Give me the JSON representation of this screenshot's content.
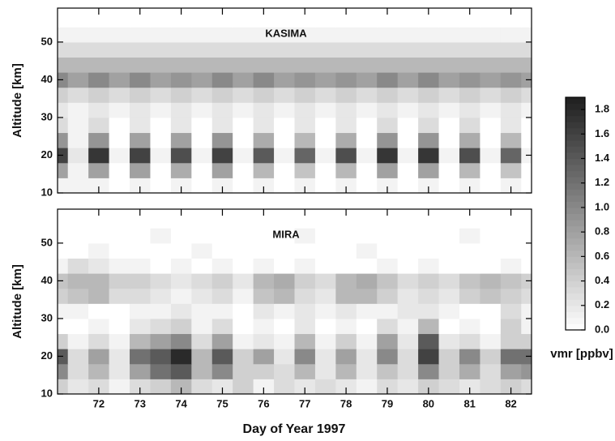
{
  "chart_data": [
    {
      "type": "contour",
      "title": "KASIMA",
      "y_label": "Altitude [km]",
      "xlim": [
        71,
        82.5
      ],
      "xticks": [
        72,
        73,
        74,
        75,
        76,
        77,
        78,
        79,
        80,
        81,
        82
      ],
      "ylim": [
        10,
        59
      ],
      "yticks": [
        10,
        20,
        30,
        40,
        50
      ],
      "x": [
        71.0,
        71.5,
        72.0,
        72.5,
        73.0,
        73.5,
        74.0,
        74.5,
        75.0,
        75.5,
        76.0,
        76.5,
        77.0,
        77.5,
        78.0,
        78.5,
        79.0,
        79.5,
        80.0,
        80.5,
        81.0,
        81.5,
        82.0,
        82.5
      ],
      "y": [
        12,
        16,
        20,
        24,
        28,
        32,
        36,
        40,
        44,
        48,
        52,
        56
      ],
      "z": [
        [
          0.1,
          0.1,
          0.1,
          0.0,
          0.1,
          0.0,
          0.1,
          0.0,
          0.1,
          0.0,
          0.1,
          0.0,
          0.1,
          0.0,
          0.1,
          0.0,
          0.1,
          0.0,
          0.1,
          0.0,
          0.1,
          0.0,
          0.1,
          0.0
        ],
        [
          0.8,
          0.1,
          0.8,
          0.0,
          0.8,
          0.0,
          0.7,
          0.0,
          0.8,
          0.0,
          0.6,
          0.0,
          0.5,
          0.0,
          0.6,
          0.0,
          0.8,
          0.0,
          0.8,
          0.0,
          0.6,
          0.0,
          0.5,
          0.0
        ],
        [
          1.6,
          0.2,
          1.7,
          0.1,
          1.6,
          0.1,
          1.5,
          0.1,
          1.6,
          0.1,
          1.4,
          0.1,
          1.3,
          0.1,
          1.5,
          0.1,
          1.7,
          0.1,
          1.7,
          0.1,
          1.5,
          0.1,
          1.3,
          0.1
        ],
        [
          0.9,
          0.1,
          0.9,
          0.0,
          0.8,
          0.0,
          0.8,
          0.0,
          0.9,
          0.0,
          0.7,
          0.0,
          0.6,
          0.0,
          0.7,
          0.0,
          0.9,
          0.0,
          0.9,
          0.0,
          0.7,
          0.0,
          0.6,
          0.0
        ],
        [
          0.3,
          0.1,
          0.3,
          0.0,
          0.2,
          0.0,
          0.2,
          0.0,
          0.2,
          0.0,
          0.2,
          0.0,
          0.2,
          0.0,
          0.2,
          0.0,
          0.3,
          0.0,
          0.3,
          0.0,
          0.3,
          0.0,
          0.2,
          0.0
        ],
        [
          0.2,
          0.1,
          0.2,
          0.1,
          0.2,
          0.1,
          0.2,
          0.1,
          0.2,
          0.1,
          0.2,
          0.1,
          0.2,
          0.1,
          0.2,
          0.1,
          0.2,
          0.1,
          0.2,
          0.1,
          0.2,
          0.1,
          0.2,
          0.1
        ],
        [
          0.4,
          0.3,
          0.4,
          0.3,
          0.4,
          0.3,
          0.4,
          0.3,
          0.4,
          0.3,
          0.4,
          0.3,
          0.4,
          0.3,
          0.4,
          0.3,
          0.4,
          0.3,
          0.4,
          0.3,
          0.4,
          0.3,
          0.4,
          0.3
        ],
        [
          1.0,
          0.8,
          1.0,
          0.8,
          1.0,
          0.8,
          0.9,
          0.8,
          1.0,
          0.8,
          1.0,
          0.8,
          0.9,
          0.8,
          0.9,
          0.8,
          1.0,
          0.8,
          1.0,
          0.8,
          0.9,
          0.8,
          0.9,
          0.8
        ],
        [
          0.6,
          0.6,
          0.6,
          0.6,
          0.6,
          0.6,
          0.6,
          0.6,
          0.6,
          0.6,
          0.6,
          0.6,
          0.6,
          0.6,
          0.6,
          0.6,
          0.6,
          0.6,
          0.6,
          0.6,
          0.6,
          0.6,
          0.6,
          0.6
        ],
        [
          0.3,
          0.3,
          0.3,
          0.3,
          0.3,
          0.3,
          0.3,
          0.3,
          0.3,
          0.3,
          0.3,
          0.3,
          0.3,
          0.3,
          0.3,
          0.3,
          0.3,
          0.3,
          0.3,
          0.3,
          0.3,
          0.3,
          0.3,
          0.3
        ],
        [
          0.1,
          0.1,
          0.1,
          0.1,
          0.1,
          0.1,
          0.1,
          0.1,
          0.1,
          0.1,
          0.1,
          0.1,
          0.1,
          0.1,
          0.1,
          0.1,
          0.1,
          0.1,
          0.1,
          0.1,
          0.1,
          0.1,
          0.1,
          0.1
        ],
        [
          0.0,
          0.0,
          0.0,
          0.0,
          0.0,
          0.0,
          0.0,
          0.0,
          0.0,
          0.0,
          0.0,
          0.0,
          0.0,
          0.0,
          0.0,
          0.0,
          0.0,
          0.0,
          0.0,
          0.0,
          0.0,
          0.0,
          0.0,
          0.0
        ]
      ]
    },
    {
      "type": "contour",
      "title": "MIRA",
      "y_label": "Altitude [km]",
      "x_label": "Day of Year 1997",
      "xlim": [
        71,
        82.5
      ],
      "xticks": [
        72,
        73,
        74,
        75,
        76,
        77,
        78,
        79,
        80,
        81,
        82
      ],
      "ylim": [
        10,
        59
      ],
      "yticks": [
        10,
        20,
        30,
        40,
        50
      ],
      "x": [
        71.0,
        71.5,
        72.0,
        72.5,
        73.0,
        73.5,
        74.0,
        74.5,
        75.0,
        75.5,
        76.0,
        76.5,
        77.0,
        77.5,
        78.0,
        78.5,
        79.0,
        79.5,
        80.0,
        80.5,
        81.0,
        81.5,
        82.0,
        82.5
      ],
      "y": [
        12,
        16,
        20,
        24,
        28,
        32,
        36,
        40,
        44,
        48,
        52,
        56
      ],
      "z": [
        [
          0.4,
          0.2,
          0.3,
          0.1,
          0.3,
          0.4,
          0.6,
          0.3,
          0.2,
          0.4,
          0.1,
          0.3,
          0.2,
          0.3,
          0.2,
          0.1,
          0.3,
          0.2,
          0.4,
          0.3,
          0.2,
          0.3,
          0.4,
          0.3
        ],
        [
          1.0,
          0.3,
          0.6,
          0.2,
          0.8,
          1.2,
          1.4,
          0.6,
          1.0,
          0.4,
          0.4,
          0.3,
          0.6,
          0.2,
          0.6,
          0.2,
          0.5,
          0.3,
          1.0,
          0.4,
          0.7,
          0.3,
          0.8,
          0.9
        ],
        [
          1.4,
          0.3,
          0.8,
          0.2,
          1.2,
          1.4,
          1.8,
          0.6,
          1.4,
          0.4,
          0.8,
          0.2,
          1.0,
          0.2,
          0.8,
          0.2,
          1.0,
          0.3,
          1.6,
          0.4,
          1.0,
          0.4,
          1.2,
          1.2
        ],
        [
          0.4,
          0.1,
          0.3,
          0.1,
          0.6,
          0.8,
          1.0,
          0.3,
          0.8,
          0.1,
          0.2,
          0.1,
          0.6,
          0.1,
          0.4,
          0.1,
          0.8,
          0.2,
          1.4,
          0.2,
          0.3,
          0.1,
          0.4,
          0.4
        ],
        [
          0.0,
          0.0,
          0.1,
          0.0,
          0.2,
          0.3,
          0.4,
          0.1,
          0.3,
          0.0,
          0.1,
          0.0,
          0.2,
          0.0,
          0.1,
          0.0,
          0.3,
          0.1,
          0.6,
          0.0,
          0.1,
          0.0,
          0.4,
          0.1
        ],
        [
          0.1,
          0.1,
          0.0,
          0.0,
          0.1,
          0.1,
          0.2,
          0.1,
          0.1,
          0.0,
          0.2,
          0.1,
          0.2,
          0.1,
          0.2,
          0.1,
          0.1,
          0.2,
          0.2,
          0.1,
          0.0,
          0.0,
          0.3,
          0.1
        ],
        [
          0.4,
          0.5,
          0.6,
          0.3,
          0.3,
          0.2,
          0.1,
          0.2,
          0.3,
          0.1,
          0.5,
          0.6,
          0.3,
          0.2,
          0.6,
          0.6,
          0.4,
          0.2,
          0.3,
          0.2,
          0.4,
          0.5,
          0.4,
          0.3
        ],
        [
          0.5,
          0.6,
          0.6,
          0.4,
          0.4,
          0.3,
          0.2,
          0.3,
          0.4,
          0.2,
          0.6,
          0.7,
          0.4,
          0.3,
          0.6,
          0.7,
          0.5,
          0.3,
          0.4,
          0.3,
          0.5,
          0.6,
          0.5,
          0.4
        ],
        [
          0.1,
          0.3,
          0.2,
          0.1,
          0.1,
          0.0,
          0.1,
          0.0,
          0.1,
          0.0,
          0.1,
          0.0,
          0.1,
          0.0,
          0.0,
          0.0,
          0.1,
          0.0,
          0.1,
          0.0,
          0.0,
          0.0,
          0.1,
          0.0
        ],
        [
          0.0,
          0.0,
          0.1,
          0.0,
          0.0,
          0.0,
          0.0,
          0.1,
          0.0,
          0.0,
          0.0,
          0.0,
          0.0,
          0.0,
          0.0,
          0.1,
          0.0,
          0.0,
          0.0,
          0.0,
          0.0,
          0.0,
          0.0,
          0.0
        ],
        [
          0.0,
          0.0,
          0.0,
          0.0,
          0.0,
          0.1,
          0.0,
          0.0,
          0.0,
          0.0,
          0.0,
          0.0,
          0.1,
          0.0,
          0.0,
          0.0,
          0.0,
          0.0,
          0.0,
          0.0,
          0.1,
          0.0,
          0.0,
          0.0
        ],
        [
          0.0,
          0.0,
          0.0,
          0.0,
          0.0,
          0.0,
          0.0,
          0.0,
          0.0,
          0.0,
          0.0,
          0.0,
          0.0,
          0.0,
          0.0,
          0.0,
          0.0,
          0.0,
          0.0,
          0.0,
          0.0,
          0.0,
          0.0,
          0.0
        ]
      ]
    }
  ],
  "colorbar": {
    "label": "vmr [ppbv]",
    "zlim": [
      0,
      1.9
    ],
    "ticks": [
      {
        "value": 0,
        "label": "0.0"
      },
      0.2,
      0.4,
      0.6,
      0.8,
      {
        "value": 1,
        "label": "1.0"
      },
      1.2,
      1.4,
      1.6,
      1.8
    ]
  }
}
